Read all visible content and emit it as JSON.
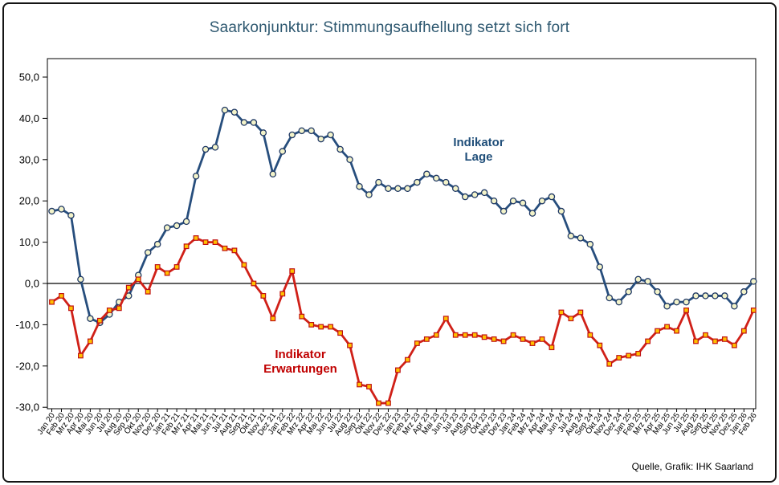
{
  "title": "Saarkonjunktur: Stimmungsaufhellung setzt sich fort",
  "source": "Quelle, Grafik: IHK Saarland",
  "annotations": {
    "lage_label": "Indikator\nLage",
    "erwartungen_label": "Indikator\nErwartungen"
  },
  "colors": {
    "title": "#2e5870",
    "lage_line": "#274e7d",
    "lage_marker_fill": "#f3f3c9",
    "lage_marker_stroke": "#1f3864",
    "erwartungen_line": "#d02018",
    "erwartungen_marker_fill": "#ffc000",
    "erwartungen_marker_stroke": "#bf1010",
    "axis": "#000000"
  },
  "chart_data": {
    "type": "line",
    "title": "Saarkonjunktur: Stimmungsaufhellung setzt sich fort",
    "xlabel": "",
    "ylabel": "",
    "ylim": [
      -30,
      50
    ],
    "ytick_step": 10,
    "ytick_labels": [
      "50,0",
      "40,0",
      "30,0",
      "20,0",
      "10,0",
      "0,0",
      "-10,0",
      "-20,0",
      "-30,0"
    ],
    "grid": "zero-line-only",
    "legend_position": "inline-annotations",
    "categories": [
      "Jan 20",
      "Feb 20",
      "Mrz 20",
      "Apr 20",
      "Mai 20",
      "Jun 20",
      "Jul 20",
      "Aug 20",
      "Sep 20",
      "Okt 20",
      "Nov 20",
      "Dez 20",
      "Jan 21",
      "Feb 21",
      "Mrz 21",
      "Apr 21",
      "Mai 21",
      "Jun 21",
      "Jul 21",
      "Aug 21",
      "Sep 21",
      "Okt 21",
      "Nov 21",
      "Dez 21",
      "Jan 22",
      "Feb 22",
      "Mrz 22",
      "Apr 22",
      "Mai 22",
      "Jun 22",
      "Jul 22",
      "Aug 22",
      "Sep 22",
      "Okt 22",
      "Nov 22",
      "Dez 22",
      "Jan 23",
      "Feb 23",
      "Mrz 23",
      "Apr 23",
      "Mai 23",
      "Jun 23",
      "Jul 23",
      "Aug 23",
      "Sep 23",
      "Okt 23",
      "Nov 23",
      "Dez 23",
      "Jan 24",
      "Feb 24",
      "Mrz 24",
      "Apr 24",
      "Mai 24",
      "Jun 24",
      "Jul 24",
      "Aug 24",
      "Sep 24",
      "Okt 24",
      "Nov 24",
      "Dez 24",
      "Jan 25",
      "Feb 25",
      "Mrz 25",
      "Apr 25",
      "Mai 25",
      "Jun 25",
      "Jul 25",
      "Aug 25",
      "Sep 25",
      "Okt 25",
      "Nov 25",
      "Dez 25",
      "Jan 26",
      "Feb 26"
    ],
    "series": [
      {
        "name": "Indikator Lage",
        "marker": "circle",
        "values": [
          17.5,
          18,
          16.5,
          1,
          -8.5,
          -9.5,
          -7.5,
          -4.5,
          -3,
          2,
          7.5,
          9.5,
          13.5,
          14,
          15,
          26,
          32.5,
          33,
          42,
          41.5,
          39,
          39,
          36.5,
          26.5,
          32,
          36,
          37,
          37,
          35,
          36,
          32.5,
          30,
          23.5,
          21.5,
          24.5,
          23,
          23,
          23,
          24.5,
          26.5,
          25.5,
          24.5,
          23,
          21,
          21.5,
          22,
          20,
          17.5,
          20,
          19.5,
          17,
          20,
          21,
          17.5,
          11.5,
          11,
          9.5,
          4,
          -3.5,
          -4.5,
          -2,
          1,
          0.5,
          -2,
          -5.5,
          -4.5,
          -4.5,
          -3,
          -3,
          -3,
          -3,
          -5.5,
          -2,
          0.5
        ]
      },
      {
        "name": "Indikator Erwartungen",
        "marker": "square",
        "values": [
          -4.5,
          -3,
          -6,
          -17.5,
          -14,
          -9,
          -6.5,
          -6,
          -1,
          1,
          -2,
          4,
          2.5,
          4,
          9,
          11,
          10,
          10,
          8.5,
          8,
          4.5,
          0,
          -3,
          -8.5,
          -2.5,
          3,
          -8,
          -10,
          -10.5,
          -10.5,
          -12,
          -15,
          -24.5,
          -25,
          -29,
          -29,
          -21,
          -18.5,
          -14.5,
          -13.5,
          -12.5,
          -8.5,
          -12.5,
          -12.5,
          -12.5,
          -13,
          -13.5,
          -14,
          -12.5,
          -13.5,
          -14.5,
          -13.5,
          -15.5,
          -7,
          -8.5,
          -7,
          -12.5,
          -15,
          -19.5,
          -18,
          -17.5,
          -17,
          -14,
          -11.5,
          -10.5,
          -11.5,
          -6.5,
          -14,
          -12.5,
          -14,
          -13.5,
          -15,
          -11.5,
          -6.5
        ]
      }
    ]
  }
}
